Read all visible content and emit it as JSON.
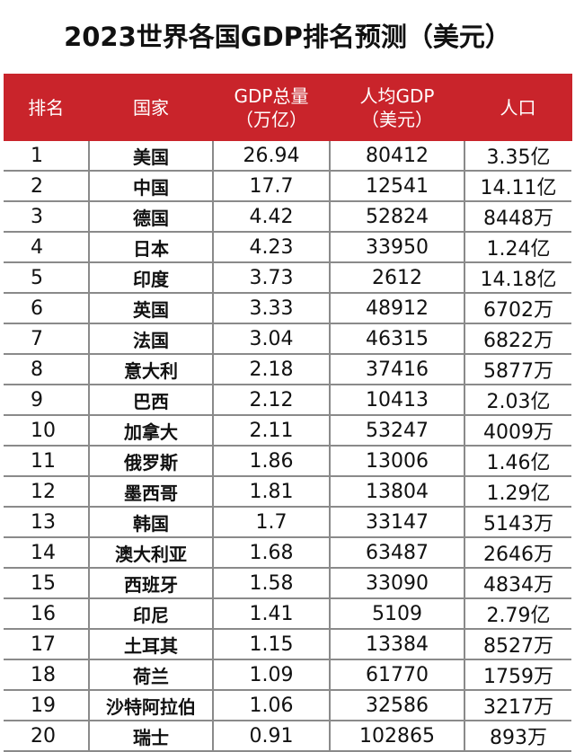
{
  "title": "2023世界各国GDP排名预测（美元）",
  "columns": {
    "rank": "排名",
    "country": "国家",
    "gdp_line1": "GDP总量",
    "gdp_line2": "（万亿）",
    "per_capita_line1": "人均GDP",
    "per_capita_line2": "（美元）",
    "population": "人口"
  },
  "rows": [
    {
      "rank": "1",
      "country": "美国",
      "gdp": "26.94",
      "per_capita": "80412",
      "population": "3.35亿"
    },
    {
      "rank": "2",
      "country": "中国",
      "gdp": "17.7",
      "per_capita": "12541",
      "population": "14.11亿"
    },
    {
      "rank": "3",
      "country": "德国",
      "gdp": "4.42",
      "per_capita": "52824",
      "population": "8448万"
    },
    {
      "rank": "4",
      "country": "日本",
      "gdp": "4.23",
      "per_capita": "33950",
      "population": "1.24亿"
    },
    {
      "rank": "5",
      "country": "印度",
      "gdp": "3.73",
      "per_capita": "2612",
      "population": "14.18亿"
    },
    {
      "rank": "6",
      "country": "英国",
      "gdp": "3.33",
      "per_capita": "48912",
      "population": "6702万"
    },
    {
      "rank": "7",
      "country": "法国",
      "gdp": "3.04",
      "per_capita": "46315",
      "population": "6822万"
    },
    {
      "rank": "8",
      "country": "意大利",
      "gdp": "2.18",
      "per_capita": "37416",
      "population": "5877万"
    },
    {
      "rank": "9",
      "country": "巴西",
      "gdp": "2.12",
      "per_capita": "10413",
      "population": "2.03亿"
    },
    {
      "rank": "10",
      "country": "加拿大",
      "gdp": "2.11",
      "per_capita": "53247",
      "population": "4009万"
    },
    {
      "rank": "11",
      "country": "俄罗斯",
      "gdp": "1.86",
      "per_capita": "13006",
      "population": "1.46亿"
    },
    {
      "rank": "12",
      "country": "墨西哥",
      "gdp": "1.81",
      "per_capita": "13804",
      "population": "1.29亿"
    },
    {
      "rank": "13",
      "country": "韩国",
      "gdp": "1.7",
      "per_capita": "33147",
      "population": "5143万"
    },
    {
      "rank": "14",
      "country": "澳大利亚",
      "gdp": "1.68",
      "per_capita": "63487",
      "population": "2646万"
    },
    {
      "rank": "15",
      "country": "西班牙",
      "gdp": "1.58",
      "per_capita": "33090",
      "population": "4834万"
    },
    {
      "rank": "16",
      "country": "印尼",
      "gdp": "1.41",
      "per_capita": "5109",
      "population": "2.79亿"
    },
    {
      "rank": "17",
      "country": "土耳其",
      "gdp": "1.15",
      "per_capita": "13384",
      "population": "8527万"
    },
    {
      "rank": "18",
      "country": "荷兰",
      "gdp": "1.09",
      "per_capita": "61770",
      "population": "1759万"
    },
    {
      "rank": "19",
      "country": "沙特阿拉伯",
      "gdp": "1.06",
      "per_capita": "32586",
      "population": "3217万"
    },
    {
      "rank": "20",
      "country": "瑞士",
      "gdp": "0.91",
      "per_capita": "102865",
      "population": "893万"
    }
  ]
}
